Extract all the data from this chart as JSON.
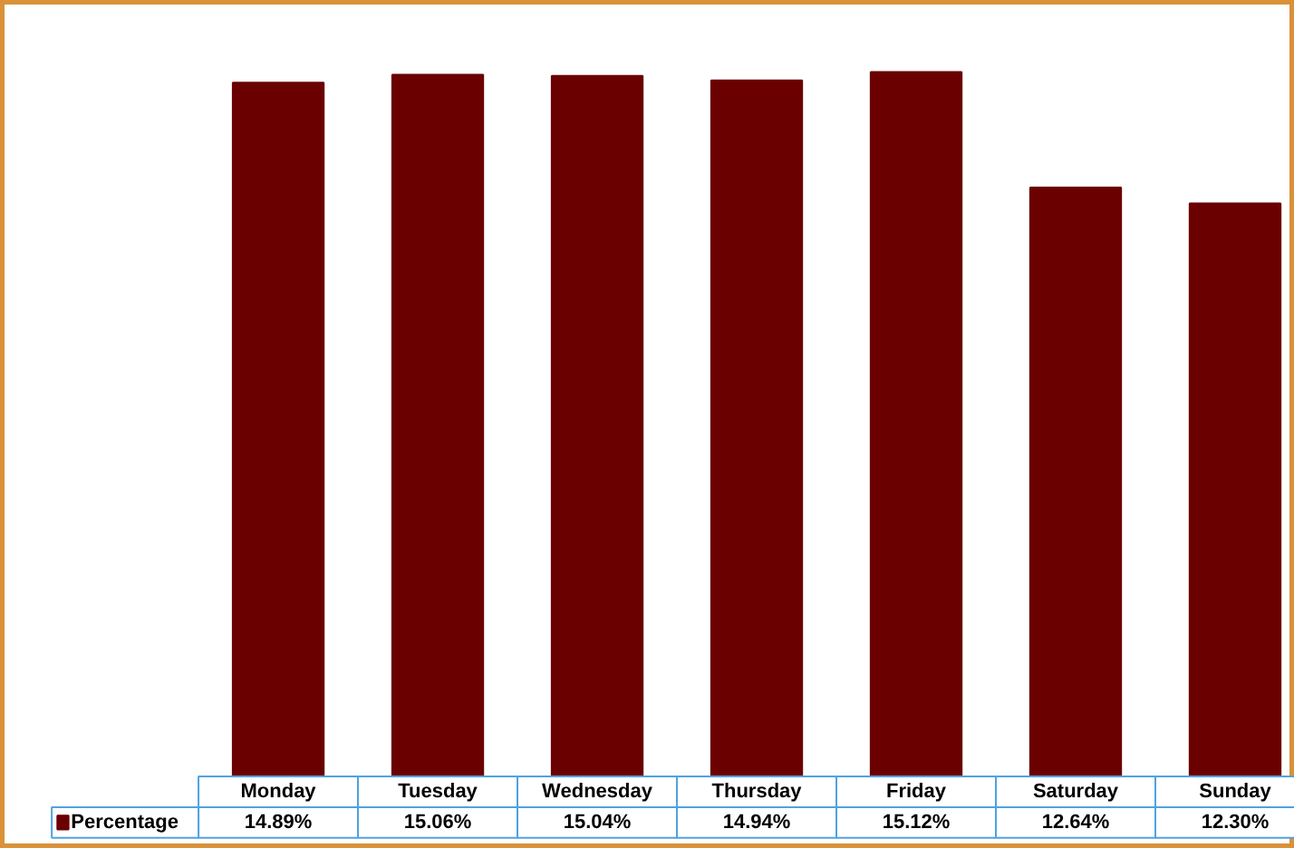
{
  "chart_data": {
    "type": "bar",
    "categories": [
      "Monday",
      "Tuesday",
      "Wednesday",
      "Thursday",
      "Friday",
      "Saturday",
      "Sunday"
    ],
    "series": [
      {
        "name": "Percentage",
        "color": "#6b0000",
        "values": [
          14.89,
          15.06,
          15.04,
          14.94,
          15.12,
          12.64,
          12.3
        ],
        "value_labels": [
          "14.89%",
          "15.06%",
          "15.04%",
          "14.94%",
          "15.12%",
          "12.64%",
          "12.30%"
        ]
      }
    ],
    "grid": false
  }
}
